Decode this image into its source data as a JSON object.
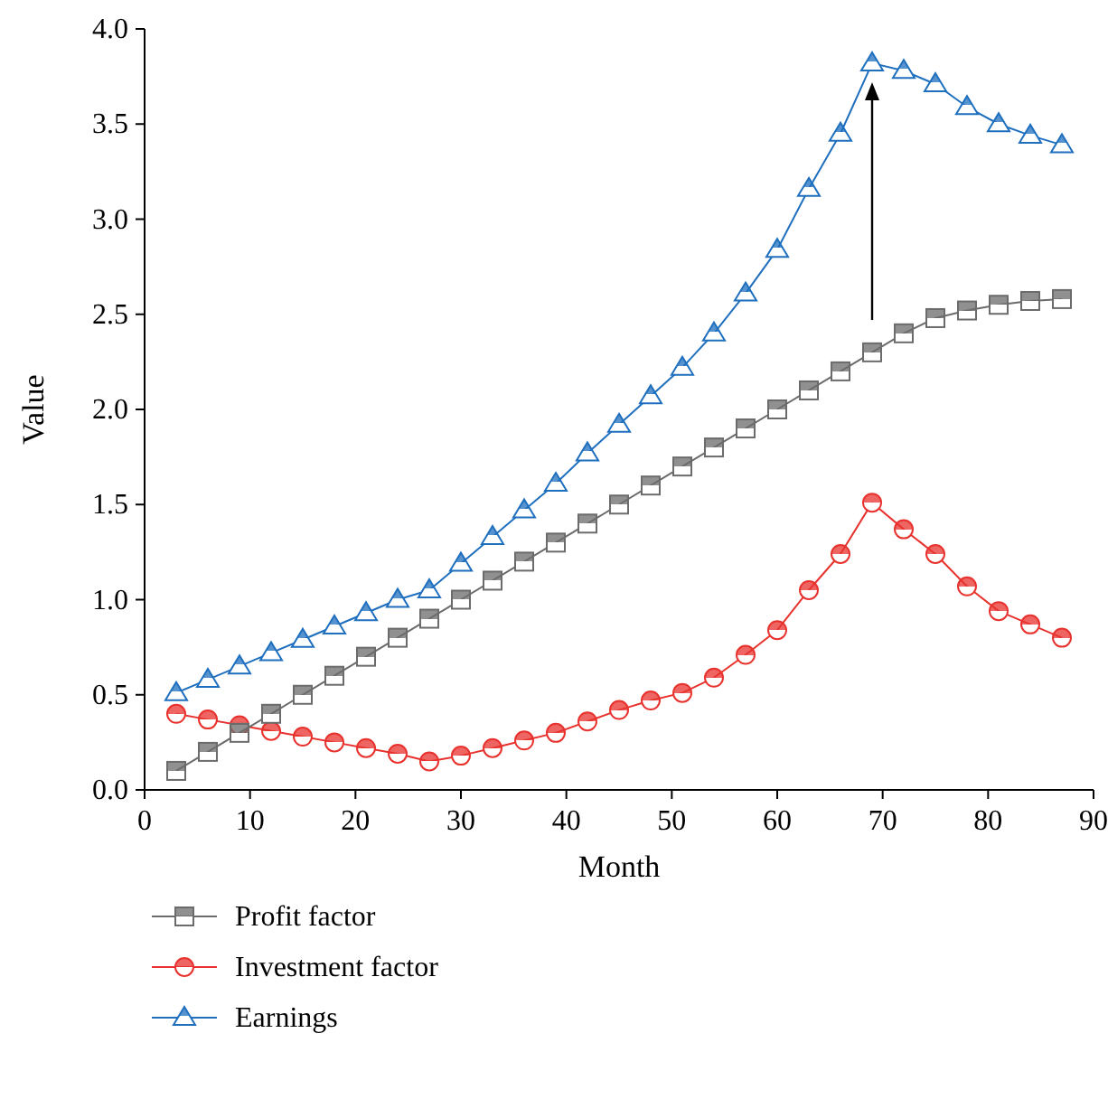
{
  "chart_data": {
    "type": "line",
    "xlabel": "Month",
    "ylabel": "Value",
    "x": [
      3,
      6,
      9,
      12,
      15,
      18,
      21,
      24,
      27,
      30,
      33,
      36,
      39,
      42,
      45,
      48,
      51,
      54,
      57,
      60,
      63,
      66,
      69,
      72,
      75,
      78,
      81,
      84,
      87
    ],
    "xlim": [
      0,
      90
    ],
    "xticks": [
      0,
      10,
      20,
      30,
      40,
      50,
      60,
      70,
      80,
      90
    ],
    "ylim": [
      0,
      4
    ],
    "yticks": [
      {
        "value": 0,
        "label": "0.0"
      },
      {
        "value": 0.5,
        "label": "0.5"
      },
      {
        "value": 1,
        "label": "1.0"
      },
      {
        "value": 1.5,
        "label": "1.5"
      },
      {
        "value": 2,
        "label": "2.0"
      },
      {
        "value": 2.5,
        "label": "2.5"
      },
      {
        "value": 3,
        "label": "3.0"
      },
      {
        "value": 3.5,
        "label": "3.5"
      },
      {
        "value": 4,
        "label": "4.0"
      }
    ],
    "legend": "bottom",
    "grid": false,
    "series": [
      {
        "name": "Profit factor",
        "color": "#6b6b6b",
        "marker": "square",
        "values": [
          0.1,
          0.2,
          0.3,
          0.4,
          0.5,
          0.6,
          0.7,
          0.8,
          0.9,
          1.0,
          1.1,
          1.2,
          1.3,
          1.4,
          1.5,
          1.6,
          1.7,
          1.8,
          1.9,
          2.0,
          2.1,
          2.2,
          2.3,
          2.4,
          2.48,
          2.52,
          2.55,
          2.57,
          2.58
        ]
      },
      {
        "name": "Investment factor",
        "color": "#e8322e",
        "marker": "circle",
        "values": [
          0.4,
          0.37,
          0.34,
          0.31,
          0.28,
          0.25,
          0.22,
          0.19,
          0.15,
          0.18,
          0.22,
          0.26,
          0.3,
          0.36,
          0.42,
          0.47,
          0.51,
          0.59,
          0.71,
          0.84,
          1.05,
          1.24,
          1.51,
          1.37,
          1.24,
          1.07,
          0.94,
          0.87,
          0.8
        ]
      },
      {
        "name": "Earnings",
        "color": "#1f6fbf",
        "marker": "triangle",
        "values": [
          0.51,
          0.58,
          0.65,
          0.72,
          0.79,
          0.86,
          0.93,
          1.0,
          1.05,
          1.19,
          1.33,
          1.47,
          1.61,
          1.77,
          1.92,
          2.07,
          2.22,
          2.4,
          2.61,
          2.84,
          3.16,
          3.45,
          3.82,
          3.78,
          3.71,
          3.59,
          3.5,
          3.44,
          3.39
        ]
      }
    ]
  }
}
